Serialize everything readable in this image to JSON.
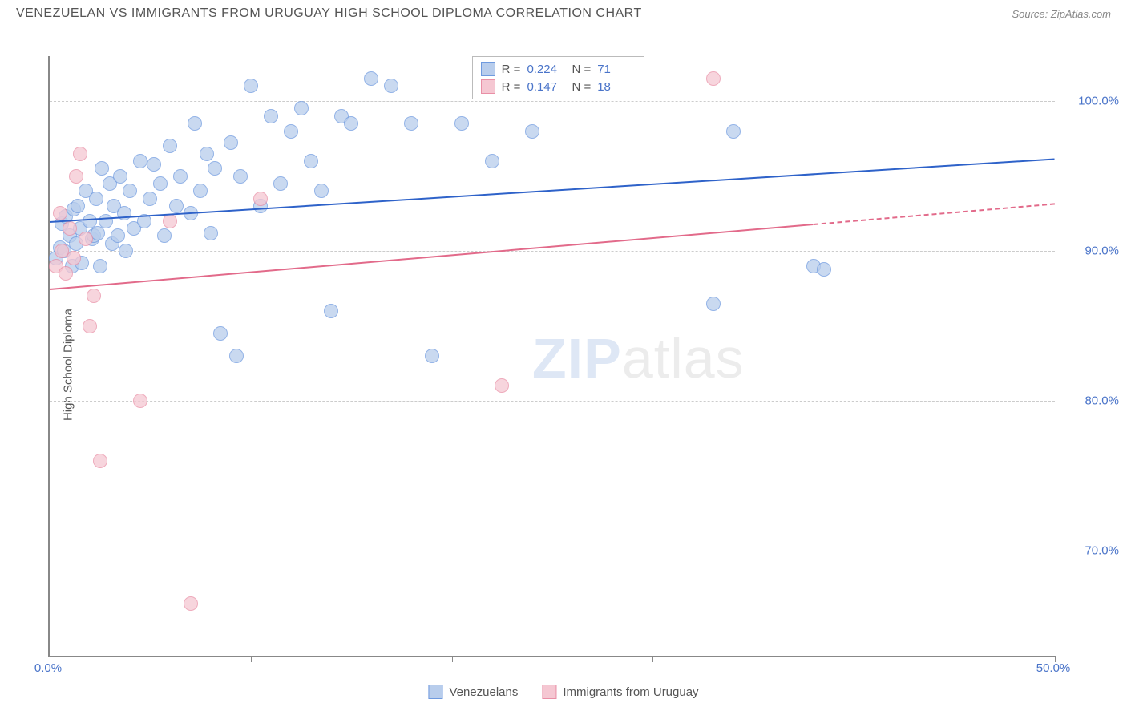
{
  "title": "VENEZUELAN VS IMMIGRANTS FROM URUGUAY HIGH SCHOOL DIPLOMA CORRELATION CHART",
  "source": "Source: ZipAtlas.com",
  "watermark": {
    "bold": "ZIP",
    "rest": "atlas"
  },
  "chart": {
    "type": "scatter",
    "y_axis_label": "High School Diploma",
    "xlim": [
      0,
      50
    ],
    "ylim": [
      63,
      103
    ],
    "x_ticks": [
      0,
      10,
      20,
      30,
      40,
      50
    ],
    "x_tick_labels": [
      "0.0%",
      "",
      "",
      "",
      "",
      "50.0%"
    ],
    "y_ticks": [
      70,
      80,
      90,
      100
    ],
    "y_tick_labels": [
      "70.0%",
      "80.0%",
      "90.0%",
      "100.0%"
    ],
    "gridline_color": "#d0d0d0",
    "background_color": "#ffffff",
    "point_radius": 9,
    "series": [
      {
        "key": "venezuelans",
        "label": "Venezuelans",
        "fill": "#b8cdec",
        "stroke": "#6f9adf",
        "trend_color": "#2e62c9",
        "R": "0.224",
        "N": "71",
        "trend": {
          "x1": 0,
          "y1": 92.0,
          "x2": 50,
          "y2": 96.2,
          "dashed_from": null
        },
        "points": [
          [
            0.3,
            89.5
          ],
          [
            0.5,
            90.2
          ],
          [
            0.6,
            91.8
          ],
          [
            0.7,
            90.0
          ],
          [
            0.8,
            92.3
          ],
          [
            1.0,
            91.0
          ],
          [
            1.1,
            89.0
          ],
          [
            1.2,
            92.8
          ],
          [
            1.3,
            90.5
          ],
          [
            1.4,
            93.0
          ],
          [
            1.5,
            91.5
          ],
          [
            1.6,
            89.2
          ],
          [
            1.8,
            94.0
          ],
          [
            2.0,
            92.0
          ],
          [
            2.1,
            90.8
          ],
          [
            2.2,
            91.0
          ],
          [
            2.3,
            93.5
          ],
          [
            2.4,
            91.2
          ],
          [
            2.5,
            89.0
          ],
          [
            2.6,
            95.5
          ],
          [
            2.8,
            92.0
          ],
          [
            3.0,
            94.5
          ],
          [
            3.1,
            90.5
          ],
          [
            3.2,
            93.0
          ],
          [
            3.4,
            91.0
          ],
          [
            3.5,
            95.0
          ],
          [
            3.7,
            92.5
          ],
          [
            3.8,
            90.0
          ],
          [
            4.0,
            94.0
          ],
          [
            4.2,
            91.5
          ],
          [
            4.5,
            96.0
          ],
          [
            4.7,
            92.0
          ],
          [
            5.0,
            93.5
          ],
          [
            5.2,
            95.8
          ],
          [
            5.5,
            94.5
          ],
          [
            5.7,
            91.0
          ],
          [
            6.0,
            97.0
          ],
          [
            6.3,
            93.0
          ],
          [
            6.5,
            95.0
          ],
          [
            7.0,
            92.5
          ],
          [
            7.2,
            98.5
          ],
          [
            7.5,
            94.0
          ],
          [
            7.8,
            96.5
          ],
          [
            8.0,
            91.2
          ],
          [
            8.2,
            95.5
          ],
          [
            8.5,
            84.5
          ],
          [
            9.0,
            97.2
          ],
          [
            9.3,
            83.0
          ],
          [
            9.5,
            95.0
          ],
          [
            10.0,
            101.0
          ],
          [
            10.5,
            93.0
          ],
          [
            11.0,
            99.0
          ],
          [
            11.5,
            94.5
          ],
          [
            12.0,
            98.0
          ],
          [
            12.5,
            99.5
          ],
          [
            13.0,
            96.0
          ],
          [
            13.5,
            94.0
          ],
          [
            14.0,
            86.0
          ],
          [
            14.5,
            99.0
          ],
          [
            15.0,
            98.5
          ],
          [
            16.0,
            101.5
          ],
          [
            17.0,
            101.0
          ],
          [
            18.0,
            98.5
          ],
          [
            19.0,
            83.0
          ],
          [
            20.5,
            98.5
          ],
          [
            22.0,
            96.0
          ],
          [
            24.0,
            98.0
          ],
          [
            33.0,
            86.5
          ],
          [
            34.0,
            98.0
          ],
          [
            38.0,
            89.0
          ],
          [
            38.5,
            88.8
          ]
        ]
      },
      {
        "key": "uruguay",
        "label": "Immigrants from Uruguay",
        "fill": "#f5c7d2",
        "stroke": "#e98fa6",
        "trend_color": "#e26a8a",
        "R": "0.147",
        "N": "18",
        "trend": {
          "x1": 0,
          "y1": 87.5,
          "x2": 50,
          "y2": 93.2,
          "dashed_from": 38
        },
        "points": [
          [
            0.3,
            89.0
          ],
          [
            0.5,
            92.5
          ],
          [
            0.6,
            90.0
          ],
          [
            0.8,
            88.5
          ],
          [
            1.0,
            91.5
          ],
          [
            1.2,
            89.5
          ],
          [
            1.3,
            95.0
          ],
          [
            1.5,
            96.5
          ],
          [
            1.8,
            90.8
          ],
          [
            2.0,
            85.0
          ],
          [
            2.2,
            87.0
          ],
          [
            2.5,
            76.0
          ],
          [
            4.5,
            80.0
          ],
          [
            6.0,
            92.0
          ],
          [
            7.0,
            66.5
          ],
          [
            10.5,
            93.5
          ],
          [
            22.5,
            81.0
          ],
          [
            33.0,
            101.5
          ]
        ]
      }
    ],
    "stats_box": {
      "R_label": "R =",
      "N_label": "N ="
    }
  },
  "bottom_legend": [
    {
      "label": "Venezuelans",
      "fill": "#b8cdec",
      "stroke": "#6f9adf"
    },
    {
      "label": "Immigrants from Uruguay",
      "fill": "#f5c7d2",
      "stroke": "#e98fa6"
    }
  ]
}
